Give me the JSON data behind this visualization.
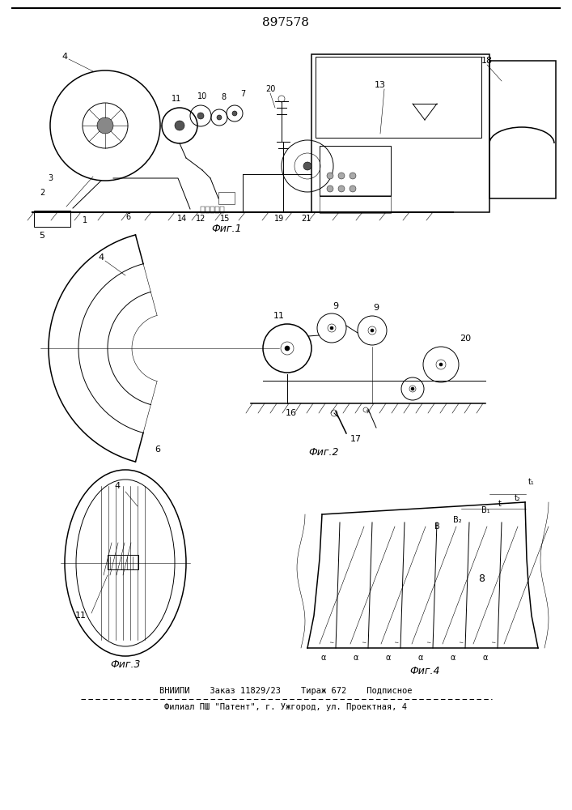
{
  "patent_number": "897578",
  "bg": "#ffffff",
  "lc": "#000000",
  "footer1": "ВНИИПИ    Заказ 11829/23    Тираж 672    Подписное",
  "footer2": "Филиал ПШ \"Патент\", г. Ужгород, ул. Проектная, 4",
  "fig1_label": "Фиг.1",
  "fig2_label": "Фиг.2",
  "fig3_label": "Фиг.3",
  "fig4_label": "Фиг.4"
}
